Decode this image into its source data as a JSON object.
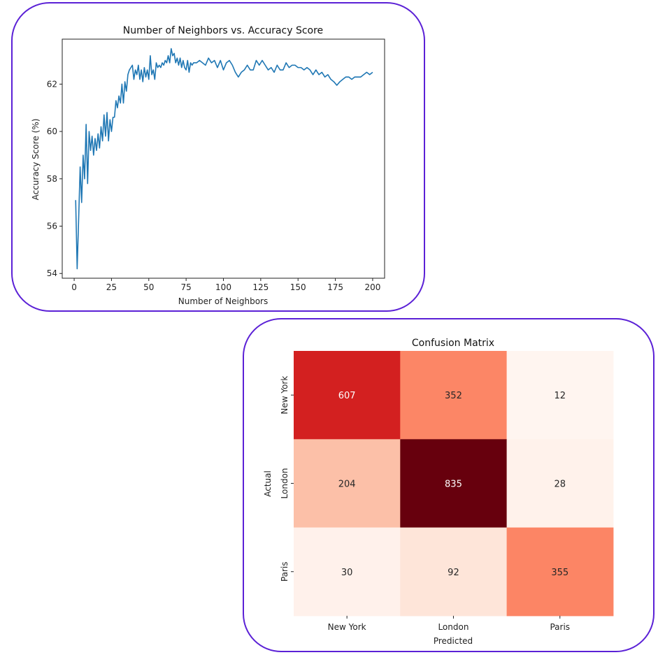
{
  "chart_data": [
    {
      "type": "line",
      "title": "Number of Neighbors vs. Accuracy Score",
      "xlabel": "Number of Neighbors",
      "ylabel": "Accuracy Score (%)",
      "xlim": [
        -8,
        208
      ],
      "ylim": [
        53.8,
        63.9
      ],
      "xticks": [
        0,
        25,
        50,
        75,
        100,
        125,
        150,
        175,
        200
      ],
      "yticks": [
        54,
        56,
        58,
        60,
        62
      ],
      "grid": false,
      "line_color": "#1f77b4",
      "series": [
        {
          "points": [
            [
              1,
              57.1
            ],
            [
              2,
              54.2
            ],
            [
              3,
              56.3
            ],
            [
              4,
              58.5
            ],
            [
              5,
              57.0
            ],
            [
              6,
              59.0
            ],
            [
              7,
              58.0
            ],
            [
              8,
              60.3
            ],
            [
              9,
              57.8
            ],
            [
              10,
              60.0
            ],
            [
              11,
              59.2
            ],
            [
              12,
              59.8
            ],
            [
              13,
              59.0
            ],
            [
              14,
              59.7
            ],
            [
              15,
              59.2
            ],
            [
              16,
              59.9
            ],
            [
              17,
              59.3
            ],
            [
              18,
              60.2
            ],
            [
              19,
              59.6
            ],
            [
              20,
              60.7
            ],
            [
              21,
              59.8
            ],
            [
              22,
              60.8
            ],
            [
              23,
              59.6
            ],
            [
              24,
              60.5
            ],
            [
              25,
              60.0
            ],
            [
              26,
              60.6
            ],
            [
              27,
              60.6
            ],
            [
              28,
              61.3
            ],
            [
              29,
              61.0
            ],
            [
              30,
              61.5
            ],
            [
              31,
              61.2
            ],
            [
              32,
              62.0
            ],
            [
              33,
              61.2
            ],
            [
              34,
              62.1
            ],
            [
              35,
              61.7
            ],
            [
              36,
              62.4
            ],
            [
              37,
              62.6
            ],
            [
              38,
              62.7
            ],
            [
              39,
              62.8
            ],
            [
              40,
              62.2
            ],
            [
              41,
              62.6
            ],
            [
              42,
              62.4
            ],
            [
              43,
              62.8
            ],
            [
              44,
              62.2
            ],
            [
              45,
              62.6
            ],
            [
              46,
              62.1
            ],
            [
              47,
              62.7
            ],
            [
              48,
              62.3
            ],
            [
              49,
              62.6
            ],
            [
              50,
              62.2
            ],
            [
              51,
              63.2
            ],
            [
              52,
              62.4
            ],
            [
              53,
              62.6
            ],
            [
              54,
              62.2
            ],
            [
              55,
              62.9
            ],
            [
              56,
              62.7
            ],
            [
              57,
              62.8
            ],
            [
              58,
              62.7
            ],
            [
              59,
              62.9
            ],
            [
              60,
              62.8
            ],
            [
              61,
              63.0
            ],
            [
              62,
              62.9
            ],
            [
              63,
              63.2
            ],
            [
              64,
              62.9
            ],
            [
              65,
              63.5
            ],
            [
              66,
              63.2
            ],
            [
              67,
              63.3
            ],
            [
              68,
              62.9
            ],
            [
              69,
              63.1
            ],
            [
              70,
              62.8
            ],
            [
              71,
              63.1
            ],
            [
              72,
              62.7
            ],
            [
              73,
              63.0
            ],
            [
              74,
              62.7
            ],
            [
              75,
              62.6
            ],
            [
              76,
              63.0
            ],
            [
              77,
              62.5
            ],
            [
              78,
              62.9
            ],
            [
              79,
              62.8
            ],
            [
              80,
              62.9
            ],
            [
              82,
              62.9
            ],
            [
              84,
              63.0
            ],
            [
              86,
              62.9
            ],
            [
              88,
              62.8
            ],
            [
              90,
              63.1
            ],
            [
              92,
              62.9
            ],
            [
              94,
              63.0
            ],
            [
              96,
              62.7
            ],
            [
              98,
              63.0
            ],
            [
              100,
              62.6
            ],
            [
              102,
              62.9
            ],
            [
              104,
              63.0
            ],
            [
              106,
              62.8
            ],
            [
              108,
              62.5
            ],
            [
              110,
              62.3
            ],
            [
              112,
              62.5
            ],
            [
              114,
              62.6
            ],
            [
              116,
              62.8
            ],
            [
              118,
              62.6
            ],
            [
              120,
              62.6
            ],
            [
              122,
              63.0
            ],
            [
              124,
              62.8
            ],
            [
              126,
              63.0
            ],
            [
              128,
              62.8
            ],
            [
              130,
              62.6
            ],
            [
              132,
              62.7
            ],
            [
              134,
              62.5
            ],
            [
              136,
              62.8
            ],
            [
              138,
              62.6
            ],
            [
              140,
              62.6
            ],
            [
              142,
              62.9
            ],
            [
              144,
              62.7
            ],
            [
              146,
              62.8
            ],
            [
              148,
              62.8
            ],
            [
              150,
              62.7
            ],
            [
              152,
              62.7
            ],
            [
              154,
              62.6
            ],
            [
              156,
              62.7
            ],
            [
              158,
              62.6
            ],
            [
              160,
              62.4
            ],
            [
              162,
              62.6
            ],
            [
              164,
              62.4
            ],
            [
              166,
              62.5
            ],
            [
              168,
              62.3
            ],
            [
              170,
              62.4
            ],
            [
              172,
              62.2
            ],
            [
              174,
              62.1
            ],
            [
              176,
              61.95
            ],
            [
              178,
              62.1
            ],
            [
              180,
              62.2
            ],
            [
              182,
              62.3
            ],
            [
              184,
              62.3
            ],
            [
              186,
              62.2
            ],
            [
              188,
              62.3
            ],
            [
              190,
              62.3
            ],
            [
              192,
              62.3
            ],
            [
              194,
              62.4
            ],
            [
              196,
              62.5
            ],
            [
              198,
              62.4
            ],
            [
              200,
              62.5
            ]
          ]
        }
      ]
    },
    {
      "type": "heatmap",
      "title": "Confusion Matrix",
      "xlabel": "Predicted",
      "ylabel": "Actual",
      "x_categories": [
        "New York",
        "London",
        "Paris"
      ],
      "y_categories": [
        "New York",
        "London",
        "Paris"
      ],
      "values": [
        [
          607,
          352,
          12
        ],
        [
          204,
          835,
          28
        ],
        [
          30,
          92,
          355
        ]
      ],
      "colormap": "Reds",
      "colorbar": false
    }
  ]
}
